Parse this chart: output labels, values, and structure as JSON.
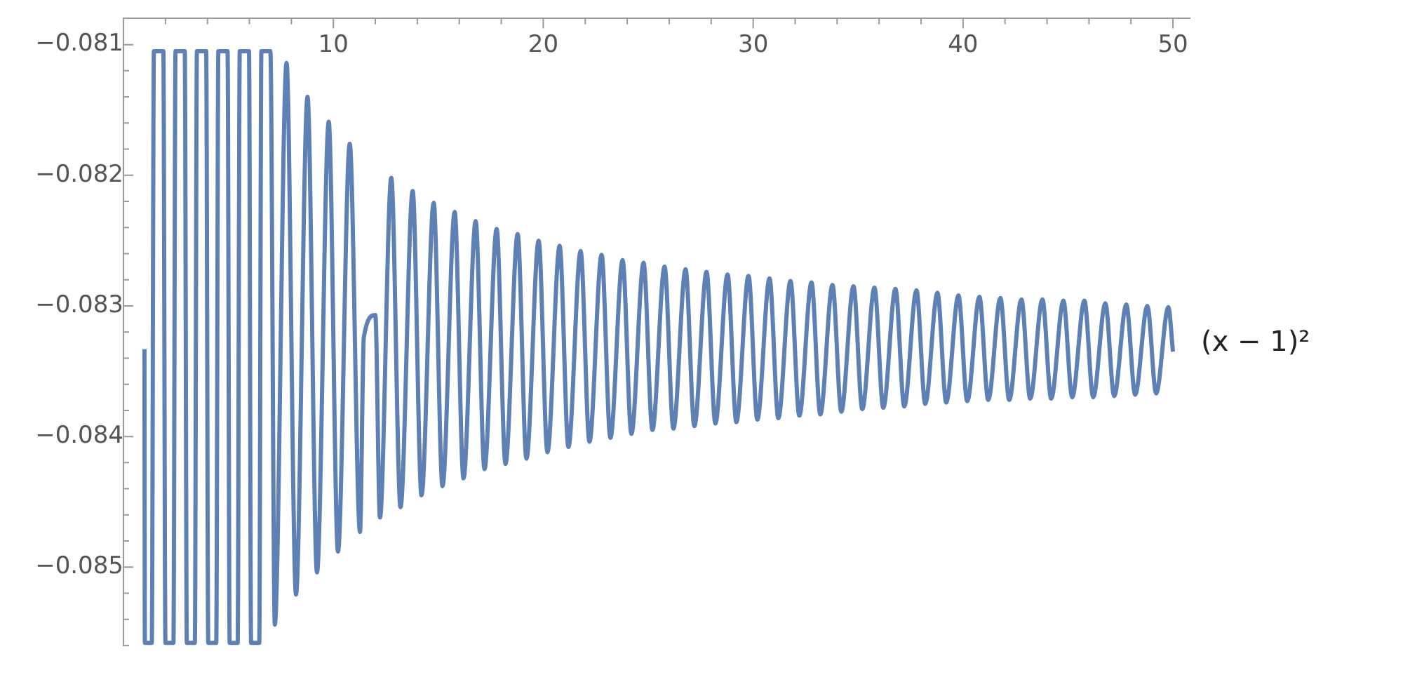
{
  "chart_data": {
    "type": "line",
    "xlim": [
      0,
      50.8
    ],
    "ylim": [
      -0.0856,
      -0.0808
    ],
    "xticks": [
      {
        "value": 2,
        "label": null
      },
      {
        "value": 4,
        "label": null
      },
      {
        "value": 6,
        "label": null
      },
      {
        "value": 8,
        "label": null
      },
      10,
      {
        "value": 12,
        "label": null
      },
      {
        "value": 14,
        "label": null
      },
      {
        "value": 16,
        "label": null
      },
      {
        "value": 18,
        "label": null
      },
      20,
      {
        "value": 22,
        "label": null
      },
      {
        "value": 24,
        "label": null
      },
      {
        "value": 26,
        "label": null
      },
      {
        "value": 28,
        "label": null
      },
      30,
      {
        "value": 32,
        "label": null
      },
      {
        "value": 34,
        "label": null
      },
      {
        "value": 36,
        "label": null
      },
      {
        "value": 38,
        "label": null
      },
      40,
      {
        "value": 42,
        "label": null
      },
      {
        "value": 44,
        "label": null
      },
      {
        "value": 46,
        "label": null
      },
      {
        "value": 48,
        "label": null
      },
      50
    ],
    "yticks": [
      {
        "value": -0.081,
        "label": "−0.081"
      },
      {
        "value": -0.0812,
        "label": null
      },
      {
        "value": -0.0814,
        "label": null
      },
      {
        "value": -0.0816,
        "label": null
      },
      {
        "value": -0.0818,
        "label": null
      },
      {
        "value": -0.082,
        "label": "−0.082"
      },
      {
        "value": -0.0822,
        "label": null
      },
      {
        "value": -0.0824,
        "label": null
      },
      {
        "value": -0.0826,
        "label": null
      },
      {
        "value": -0.0828,
        "label": null
      },
      {
        "value": -0.083,
        "label": "−0.083"
      },
      {
        "value": -0.0832,
        "label": null
      },
      {
        "value": -0.0834,
        "label": null
      },
      {
        "value": -0.0836,
        "label": null
      },
      {
        "value": -0.0838,
        "label": null
      },
      {
        "value": -0.084,
        "label": "−0.084"
      },
      {
        "value": -0.0842,
        "label": null
      },
      {
        "value": -0.0844,
        "label": null
      },
      {
        "value": -0.0846,
        "label": null
      },
      {
        "value": -0.0848,
        "label": null
      },
      {
        "value": -0.085,
        "label": "−0.085"
      },
      {
        "value": -0.0852,
        "label": null
      },
      {
        "value": -0.0854,
        "label": null
      },
      {
        "value": -0.0856,
        "label": null
      }
    ],
    "series": [
      {
        "name": "(x − 1)²",
        "color": "#5e81b5",
        "x": [
          1.0,
          1.02,
          1.35,
          1.45,
          1.9,
          2.0,
          2.38,
          2.48,
          2.92,
          3.02,
          3.4,
          3.5,
          3.94,
          4.04,
          4.42,
          4.52,
          4.96,
          5.06,
          5.44,
          5.54,
          5.98,
          6.08,
          6.47,
          6.57,
          7.0,
          7.21,
          7.77,
          8.22,
          8.77,
          9.22,
          9.78,
          10.22,
          10.78,
          11.27,
          11.45,
          12.0,
          12.22,
          12.76,
          13.2,
          13.78,
          14.2,
          14.78,
          15.2,
          15.78,
          16.2,
          16.78,
          17.2,
          17.78,
          18.2,
          18.78,
          19.2,
          19.78,
          20.2,
          20.78,
          21.2,
          21.78,
          22.2,
          22.78,
          23.2,
          23.78,
          24.2,
          24.78,
          25.2,
          25.78,
          26.2,
          26.78,
          27.2,
          27.78,
          28.2,
          28.78,
          29.2,
          29.78,
          30.2,
          30.78,
          31.2,
          31.78,
          32.2,
          32.78,
          33.2,
          33.78,
          34.2,
          34.78,
          35.2,
          35.78,
          36.2,
          36.78,
          37.2,
          37.78,
          38.2,
          38.78,
          39.2,
          39.78,
          40.2,
          40.78,
          41.2,
          41.78,
          42.2,
          42.78,
          43.2,
          43.78,
          44.2,
          44.78,
          45.2,
          45.78,
          46.2,
          46.78,
          47.2,
          47.78,
          48.2,
          48.78,
          49.2,
          49.78,
          50.0
        ],
        "values": [
          -0.08333,
          -0.08558,
          -0.08558,
          -0.08105,
          -0.08105,
          -0.08558,
          -0.08558,
          -0.08105,
          -0.08105,
          -0.08558,
          -0.08558,
          -0.08105,
          -0.08105,
          -0.08558,
          -0.08558,
          -0.08105,
          -0.08105,
          -0.08558,
          -0.08558,
          -0.08105,
          -0.08105,
          -0.08558,
          -0.08558,
          -0.08105,
          -0.08105,
          -0.08544,
          -0.08114,
          -0.08521,
          -0.0814,
          -0.08504,
          -0.08159,
          -0.08488,
          -0.08176,
          -0.08473,
          -0.08324,
          -0.08307,
          -0.08462,
          -0.08202,
          -0.08454,
          -0.08212,
          -0.08445,
          -0.08221,
          -0.08438,
          -0.08228,
          -0.08432,
          -0.08235,
          -0.08425,
          -0.08241,
          -0.08421,
          -0.08245,
          -0.08417,
          -0.0825,
          -0.08412,
          -0.08254,
          -0.08408,
          -0.08258,
          -0.08404,
          -0.08261,
          -0.08401,
          -0.08265,
          -0.08398,
          -0.08267,
          -0.08395,
          -0.0827,
          -0.08394,
          -0.08272,
          -0.08392,
          -0.08274,
          -0.0839,
          -0.08276,
          -0.08389,
          -0.08277,
          -0.08387,
          -0.08279,
          -0.08386,
          -0.08281,
          -0.08384,
          -0.08282,
          -0.08383,
          -0.08284,
          -0.08381,
          -0.08285,
          -0.08379,
          -0.08286,
          -0.08378,
          -0.08287,
          -0.08377,
          -0.08288,
          -0.08375,
          -0.0829,
          -0.08374,
          -0.08292,
          -0.08373,
          -0.08293,
          -0.08372,
          -0.08294,
          -0.08372,
          -0.08295,
          -0.08371,
          -0.08295,
          -0.08371,
          -0.08296,
          -0.0837,
          -0.08296,
          -0.0837,
          -0.08298,
          -0.08369,
          -0.08299,
          -0.08368,
          -0.083,
          -0.08367,
          -0.08301,
          -0.08335
        ]
      }
    ]
  }
}
